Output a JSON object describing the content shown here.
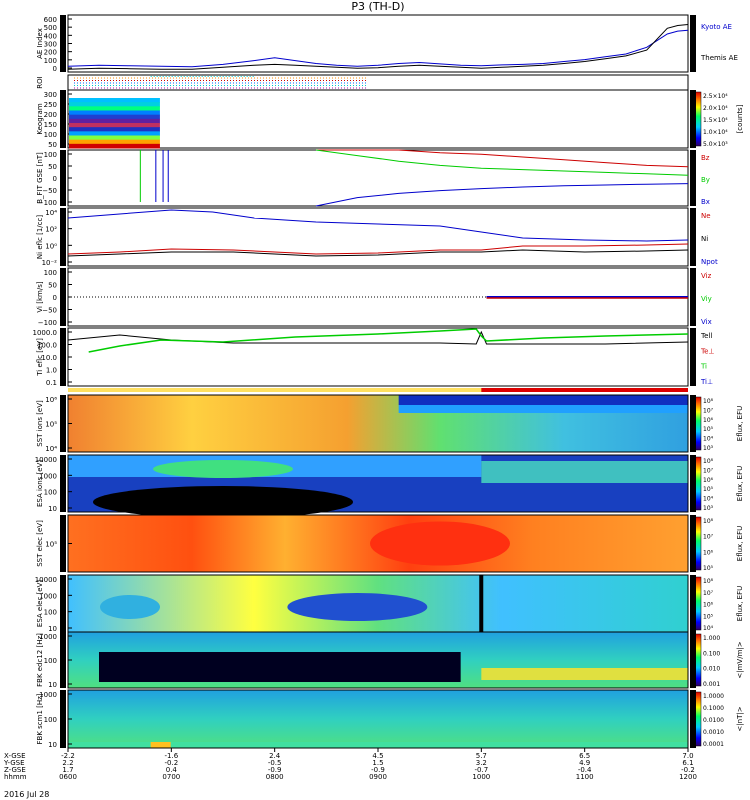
{
  "title": "P3 (TH-D)",
  "date_label": "2016 Jul 28",
  "colors": {
    "kyoto": "#0000cc",
    "themis": "#000000",
    "bz": "#cc0000",
    "by": "#00cc00",
    "bx": "#0000cc",
    "ne": "#cc0000",
    "ni": "#000000",
    "npot": "#0000cc",
    "te": "#cc0000",
    "ti": "#00cc00",
    "tpar": "#000000"
  },
  "chart_data": [
    {
      "type": "line",
      "panel": "ae",
      "ylabel": "AE Index",
      "ylim": [
        0,
        600
      ],
      "yticks": [
        "600",
        "500",
        "400",
        "300",
        "200",
        "100",
        "0"
      ],
      "legend": [
        "Kyoto AE",
        "Themis AE"
      ],
      "x_hours": [
        6.0,
        6.3,
        6.6,
        6.9,
        7.2,
        7.5,
        7.8,
        8.0,
        8.2,
        8.4,
        8.6,
        8.8,
        9.0,
        9.2,
        9.4,
        9.6,
        9.8,
        10.0,
        10.2,
        10.4,
        10.6,
        10.8,
        11.0,
        11.2,
        11.4,
        11.6,
        11.8,
        11.9,
        12.0
      ],
      "series": [
        {
          "name": "Kyoto AE",
          "values": [
            60,
            70,
            65,
            60,
            55,
            80,
            120,
            150,
            120,
            90,
            70,
            60,
            70,
            90,
            100,
            85,
            70,
            65,
            75,
            80,
            90,
            110,
            130,
            160,
            190,
            260,
            400,
            430,
            440
          ]
        },
        {
          "name": "Themis AE",
          "values": [
            30,
            40,
            35,
            30,
            30,
            50,
            70,
            80,
            70,
            60,
            50,
            40,
            45,
            60,
            70,
            60,
            50,
            40,
            50,
            60,
            70,
            90,
            110,
            140,
            170,
            230,
            460,
            490,
            500
          ]
        }
      ]
    },
    {
      "type": "heatmap",
      "panel": "roi",
      "ylabel": "ROI"
    },
    {
      "type": "heatmap",
      "panel": "keogram",
      "ylabel": "Keogram",
      "ylim": [
        0,
        300
      ],
      "yticks": [
        "300",
        "250",
        "200",
        "150",
        "100",
        "50"
      ],
      "colorbar": {
        "label": "[counts]",
        "ticks": [
          "2.5×10⁴",
          "2.0×10⁴",
          "1.5×10⁴",
          "1.0×10⁴",
          "5.0×10³"
        ]
      }
    },
    {
      "type": "line",
      "panel": "bfit",
      "ylabel": "B_FIT GSE [nT]",
      "ylim": [
        -100,
        100
      ],
      "yticks": [
        "100",
        "50",
        "0",
        "−50",
        "−100"
      ],
      "legend": [
        "Bz",
        "By",
        "Bx"
      ],
      "x_hours": [
        8.4,
        8.8,
        9.2,
        9.6,
        10.0,
        10.4,
        10.8,
        11.2,
        11.6,
        12.0
      ],
      "series": [
        {
          "name": "Bz",
          "values": [
            100,
            100,
            100,
            90,
            85,
            75,
            65,
            55,
            45,
            40
          ]
        },
        {
          "name": "By",
          "values": [
            100,
            80,
            60,
            45,
            35,
            30,
            25,
            20,
            15,
            10
          ]
        },
        {
          "name": "Bx",
          "values": [
            -100,
            -70,
            -55,
            -45,
            -38,
            -32,
            -28,
            -25,
            -22,
            -20
          ]
        }
      ]
    },
    {
      "type": "line",
      "panel": "density",
      "ylabel": "Ni eflc [1/cc]",
      "yticks": [
        "10⁴",
        "10²",
        "10⁰",
        "10⁻²"
      ],
      "legend": [
        "Ne",
        "Ni",
        "Npot"
      ]
    },
    {
      "type": "line",
      "panel": "velocity",
      "ylabel": "Vi [km/s]",
      "ylim": [
        -100,
        100
      ],
      "yticks": [
        "100",
        "50",
        "0",
        "−50",
        "−100"
      ],
      "legend": [
        "Viz",
        "Viy",
        "Vix"
      ]
    },
    {
      "type": "line",
      "panel": "temperature",
      "ylabel": "Ti eflc [eV]",
      "yticks": [
        "1000.0",
        "100.0",
        "10.0",
        "1.0",
        "0.1"
      ],
      "legend": [
        "Tell",
        "Te⊥",
        "Ti",
        "Ti⊥"
      ]
    },
    {
      "type": "heatmap",
      "panel": "sst1",
      "ylabel": "SST ions [eV]",
      "yticks": [
        "10⁶",
        "10⁵",
        "10⁴"
      ],
      "colorbar": {
        "label": "Eflux, EFU",
        "ticks": [
          "10⁸",
          "10⁷",
          "10⁶",
          "10⁵",
          "10⁴",
          "10³"
        ]
      }
    },
    {
      "type": "heatmap",
      "panel": "esa1",
      "ylabel": "ESA ions [eV]",
      "yticks": [
        "10000",
        "1000",
        "100",
        "10"
      ],
      "colorbar": {
        "label": "Eflux, EFU",
        "ticks": [
          "10⁸",
          "10⁷",
          "10⁶",
          "10⁵",
          "10⁴",
          "10³"
        ]
      }
    },
    {
      "type": "heatmap",
      "panel": "sst2",
      "ylabel": "SST elec [eV]",
      "yticks": [
        "10⁵"
      ],
      "colorbar": {
        "label": "Eflux, EFU",
        "ticks": [
          "10⁸",
          "10⁷",
          "10⁶",
          "10⁵"
        ]
      }
    },
    {
      "type": "heatmap",
      "panel": "esa2",
      "ylabel": "ESA elec [eV]",
      "yticks": [
        "10000",
        "1000",
        "100",
        "10"
      ],
      "colorbar": {
        "label": "Eflux, EFU",
        "ticks": [
          "10⁸",
          "10⁷",
          "10⁶",
          "10⁵",
          "10⁴"
        ]
      }
    },
    {
      "type": "heatmap",
      "panel": "fbk1",
      "ylabel": "FBK edc12 [Hz]",
      "yticks": [
        "1000",
        "100",
        "10"
      ],
      "colorbar": {
        "label": "<|mV/m|>",
        "ticks": [
          "1.000",
          "0.100",
          "0.010",
          "0.001"
        ]
      }
    },
    {
      "type": "heatmap",
      "panel": "fbk2",
      "ylabel": "FBK scm1 [Hz]",
      "yticks": [
        "1000",
        "100",
        "10"
      ],
      "colorbar": {
        "label": "<|nT|>",
        "ticks": [
          "1.0000",
          "0.1000",
          "0.0100",
          "0.0010",
          "0.0001"
        ]
      }
    }
  ],
  "x_axis": {
    "row_labels": [
      "X-GSE",
      "Y-GSE",
      "Z-GSE",
      "hhmm"
    ],
    "columns": [
      {
        "x": "-2.2",
        "y": "2.2",
        "z": "1.7",
        "t": "0600"
      },
      {
        "x": "-1.6",
        "y": "-0.2",
        "z": "0.4",
        "t": "0700"
      },
      {
        "x": "2.4",
        "y": "-0.5",
        "z": "-0.9",
        "t": "0800"
      },
      {
        "x": "4.5",
        "y": "1.5",
        "z": "-0.9",
        "t": "0900"
      },
      {
        "x": "5.7",
        "y": "3.2",
        "z": "-0.7",
        "t": "1000"
      },
      {
        "x": "6.5",
        "y": "4.9",
        "z": "-0.4",
        "t": "1100"
      },
      {
        "x": "7.0",
        "y": "6.1",
        "z": "-0.2",
        "t": "1200"
      }
    ]
  }
}
